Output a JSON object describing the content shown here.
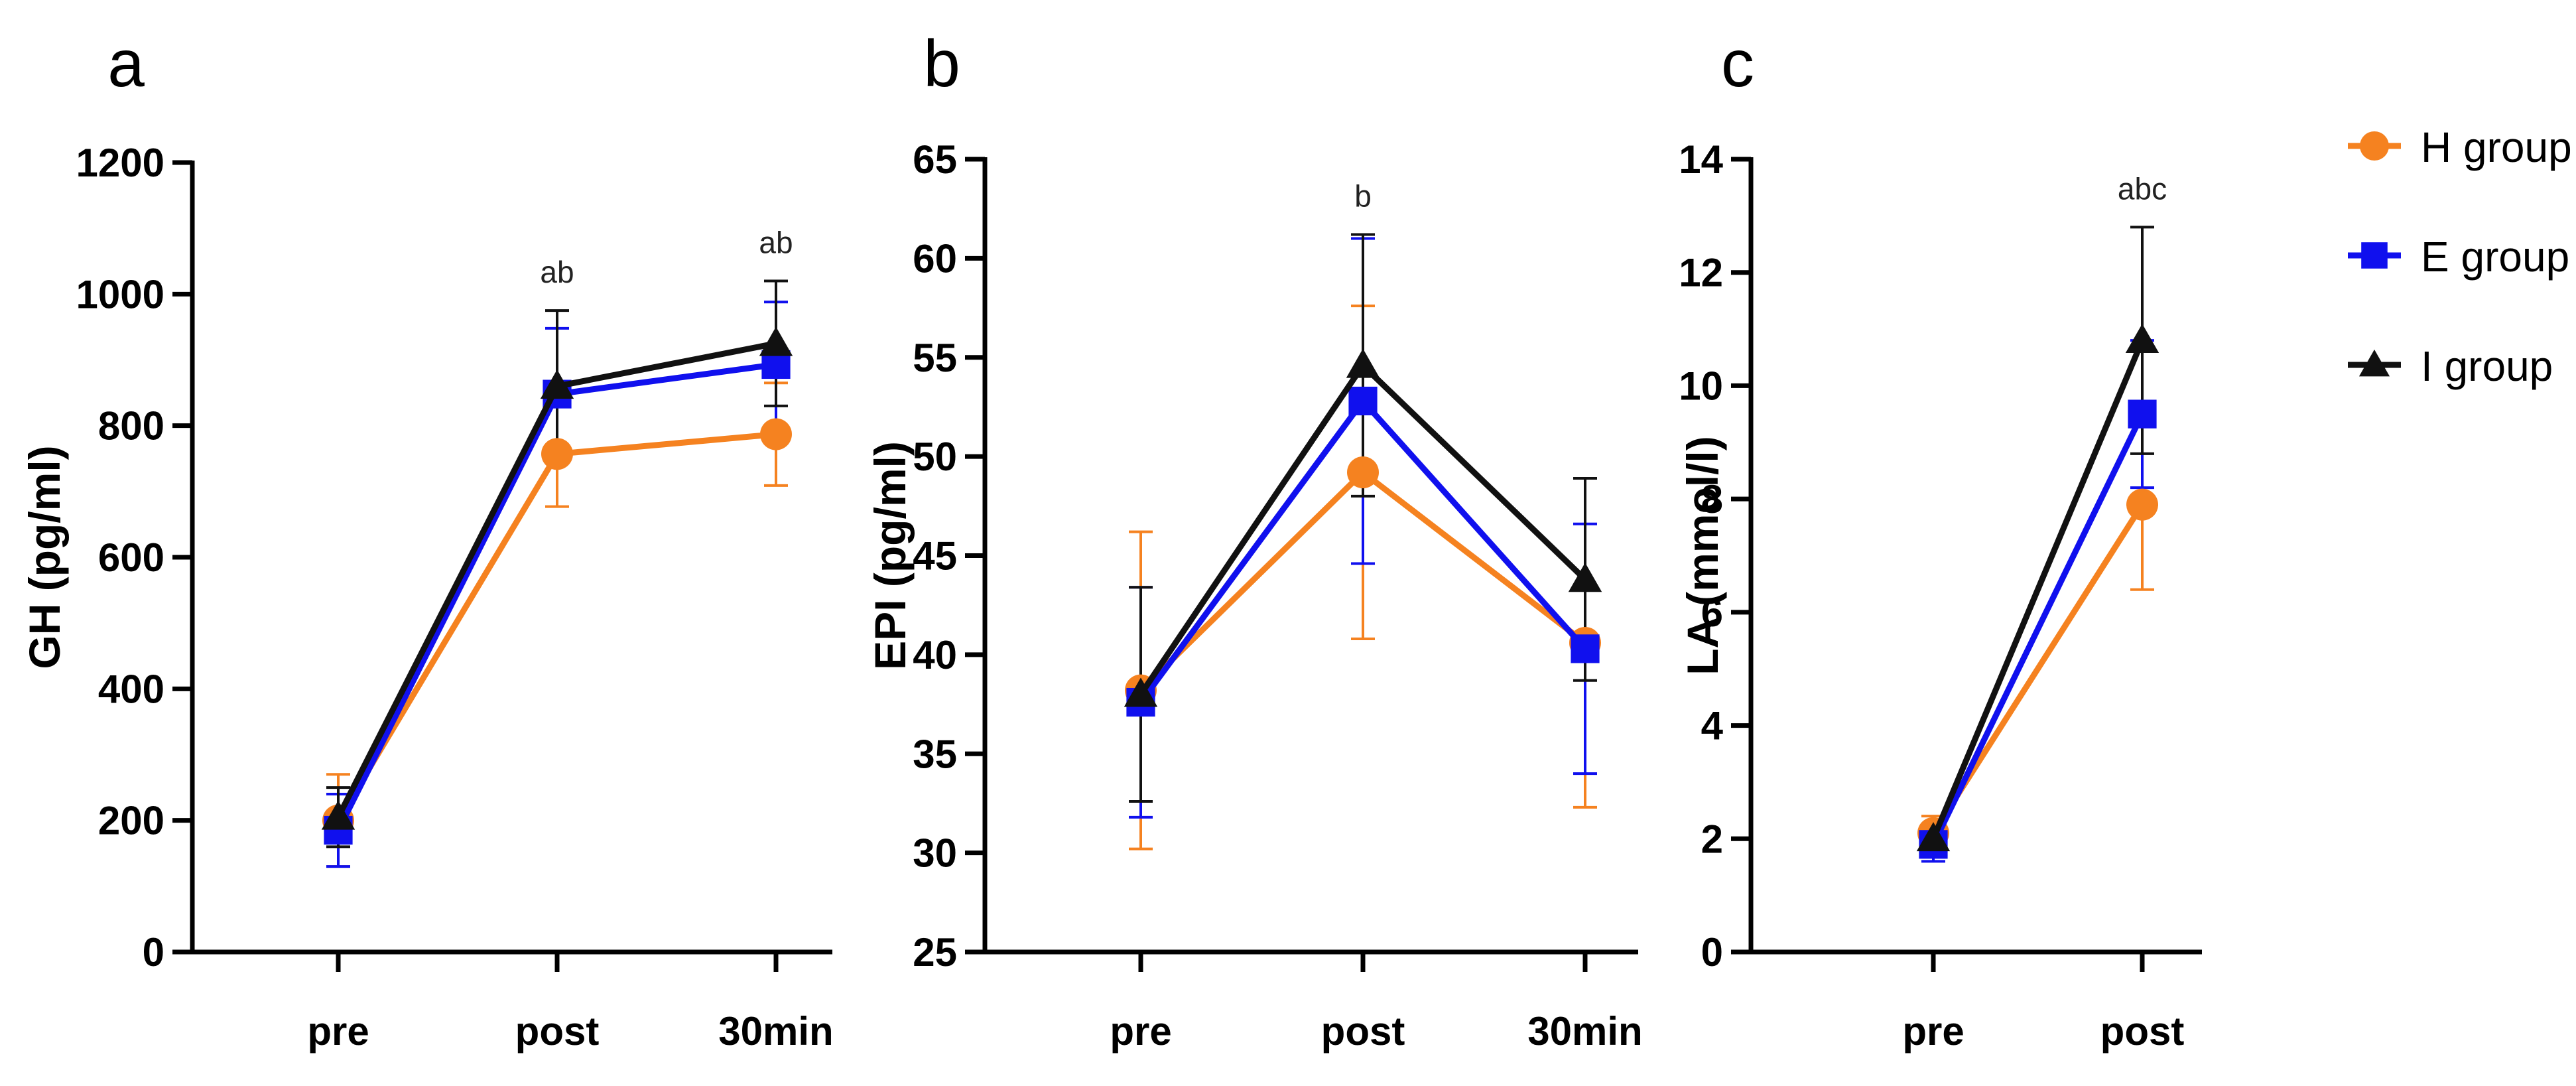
{
  "colors": {
    "H": "#F58220",
    "E": "#1010EE",
    "I": "#111111",
    "axis": "#000000"
  },
  "legend": {
    "items": [
      {
        "label": "H group",
        "color": "#F58220",
        "marker": "circle"
      },
      {
        "label": "E group",
        "color": "#1010EE",
        "marker": "square"
      },
      {
        "label": "I group",
        "color": "#111111",
        "marker": "triangle"
      }
    ],
    "placement": "right"
  },
  "chart_data": [
    {
      "panel": "a",
      "type": "line",
      "ylabel": "GH (pg/ml)",
      "categories": [
        "pre",
        "post",
        "30min"
      ],
      "ylim": [
        0,
        1200
      ],
      "yticks": [
        0,
        200,
        400,
        600,
        800,
        1000,
        1200
      ],
      "series": [
        {
          "name": "H group",
          "values": [
            200,
            757,
            787
          ],
          "err": [
            70,
            80,
            78
          ]
        },
        {
          "name": "E group",
          "values": [
            185,
            848,
            893
          ],
          "err": [
            55,
            100,
            95
          ]
        },
        {
          "name": "I group",
          "values": [
            205,
            860,
            925
          ],
          "err": [
            45,
            115,
            95
          ]
        }
      ],
      "annotations": [
        {
          "at": 1,
          "text": "ab"
        },
        {
          "at": 2,
          "text": "ab"
        }
      ]
    },
    {
      "panel": "b",
      "type": "line",
      "ylabel": "EPI (pg/ml)",
      "categories": [
        "pre",
        "post",
        "30min"
      ],
      "ylim": [
        25,
        65
      ],
      "yticks": [
        25,
        30,
        35,
        40,
        45,
        50,
        55,
        60,
        65
      ],
      "series": [
        {
          "name": "H group",
          "values": [
            38.2,
            49.2,
            40.6
          ],
          "err": [
            8.0,
            8.4,
            8.3
          ]
        },
        {
          "name": "E group",
          "values": [
            37.6,
            52.8,
            40.3
          ],
          "err": [
            5.8,
            8.2,
            6.3
          ]
        },
        {
          "name": "I group",
          "values": [
            38.0,
            54.6,
            43.8
          ],
          "err": [
            5.4,
            6.6,
            5.1
          ]
        }
      ],
      "annotations": [
        {
          "at": 1,
          "text": "b"
        }
      ]
    },
    {
      "panel": "c",
      "type": "line",
      "ylabel": "LA (mmol/l)",
      "categories": [
        "pre",
        "post"
      ],
      "ylim": [
        0,
        14
      ],
      "yticks": [
        0,
        2,
        4,
        6,
        8,
        10,
        12,
        14
      ],
      "series": [
        {
          "name": "H group",
          "values": [
            2.1,
            7.9
          ],
          "err": [
            0.3,
            1.5
          ]
        },
        {
          "name": "E group",
          "values": [
            1.9,
            9.5
          ],
          "err": [
            0.3,
            1.3
          ]
        },
        {
          "name": "I group",
          "values": [
            2.0,
            10.8
          ],
          "err": [
            0.2,
            2.0
          ]
        }
      ],
      "annotations": [
        {
          "at": 1,
          "text": "abc"
        }
      ]
    }
  ]
}
